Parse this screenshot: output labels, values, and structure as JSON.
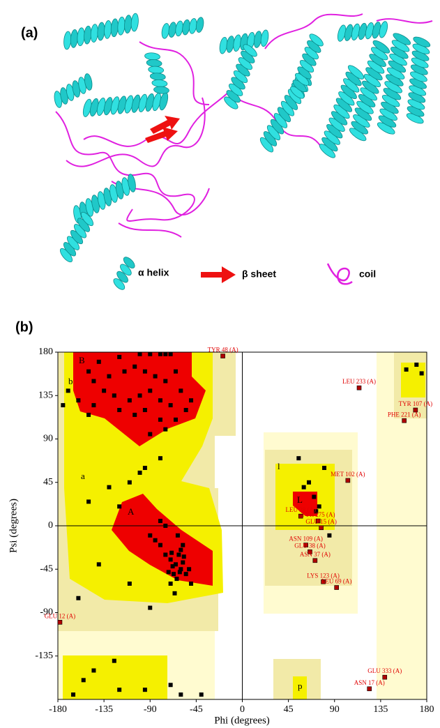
{
  "figure": {
    "panel_a": "(a)",
    "panel_b": "(b)",
    "legend": [
      "α helix",
      "β sheet",
      "coil"
    ]
  },
  "chart_data": {
    "type": "scatter",
    "xlabel": "Phi (degrees)",
    "ylabel": "Psi (degrees)",
    "xlim": [
      -180,
      180
    ],
    "ylim": [
      -180,
      180
    ],
    "xticks": [
      -180,
      -135,
      -90,
      -45,
      0,
      45,
      90,
      135,
      180
    ],
    "yticks": [
      -135,
      -90,
      -45,
      0,
      45,
      90,
      135,
      180
    ],
    "zero_lines": true,
    "point_color": "#000000",
    "outlier_color": "#b00000",
    "label_color": "#e00000",
    "region_labels": [
      "B",
      "b",
      "A",
      "a",
      "L",
      "l",
      "p"
    ],
    "x": [
      -150,
      -140,
      -120,
      -100,
      -90,
      -80,
      -75,
      -70,
      -145,
      -130,
      -115,
      -105,
      -95,
      -85,
      -75,
      -65,
      -135,
      -125,
      -110,
      -100,
      -90,
      -80,
      -70,
      -60,
      -145,
      -120,
      -105,
      -95,
      -80,
      -65,
      -55,
      -150,
      -160,
      -175,
      -170,
      -90,
      -75,
      -50,
      -65,
      -60,
      -70,
      -55,
      -62,
      -68,
      -58,
      -72,
      -64,
      -60,
      -75,
      -80,
      -85,
      -90,
      -52,
      -50,
      -66,
      -70,
      -58,
      -63,
      -80,
      -75,
      -67,
      -57,
      -61,
      -69,
      -120,
      -110,
      -100,
      -95,
      -130,
      -150,
      -80,
      -140,
      -110,
      -90,
      -160,
      -145,
      -120,
      -95,
      -70,
      -155,
      -165,
      -125,
      -60,
      -40,
      55,
      65,
      70,
      60,
      75,
      72,
      80,
      85,
      170,
      160,
      175
    ],
    "y": [
      160,
      170,
      175,
      178,
      178,
      178,
      178,
      178,
      150,
      155,
      160,
      165,
      160,
      155,
      150,
      160,
      140,
      135,
      130,
      135,
      140,
      130,
      125,
      140,
      125,
      120,
      115,
      120,
      110,
      110,
      120,
      115,
      130,
      125,
      140,
      95,
      100,
      130,
      -40,
      -45,
      -35,
      -50,
      -30,
      -42,
      -38,
      -48,
      -55,
      -25,
      -30,
      -20,
      -15,
      -10,
      -45,
      -60,
      -70,
      -60,
      -20,
      -10,
      5,
      0,
      -50,
      -32,
      -48,
      -28,
      20,
      45,
      55,
      60,
      40,
      25,
      70,
      -40,
      -60,
      -85,
      -75,
      -150,
      -170,
      -170,
      -165,
      -160,
      -175,
      -140,
      -175,
      -175,
      70,
      45,
      30,
      40,
      20,
      15,
      60,
      -10,
      167,
      162,
      158
    ],
    "annotations": [
      {
        "text": "TYR 48 (A)",
        "x": -19,
        "y": 176
      },
      {
        "text": "LEU 233 (A)",
        "x": 114,
        "y": 143
      },
      {
        "text": "TYR 107 (A)",
        "x": 169,
        "y": 120
      },
      {
        "text": "PHE 221 (A)",
        "x": 158,
        "y": 109
      },
      {
        "text": "MET 102 (A)",
        "x": 103,
        "y": 47
      },
      {
        "text": "LEU 28 (A)",
        "x": 57,
        "y": 10
      },
      {
        "text": "TYR 275 (A)",
        "x": 74,
        "y": 5
      },
      {
        "text": "GLU 15 (A)",
        "x": 77,
        "y": -2
      },
      {
        "text": "ASN 109 (A)",
        "x": 62,
        "y": -20
      },
      {
        "text": "GLU 38 (A)",
        "x": 66,
        "y": -27
      },
      {
        "text": "ASN 37 (A)",
        "x": 71,
        "y": -36
      },
      {
        "text": "LYS 123 (A)",
        "x": 79,
        "y": -58
      },
      {
        "text": "LEU 69 (A)",
        "x": 92,
        "y": -64
      },
      {
        "text": "GLU 12 (A)",
        "x": -178,
        "y": -100
      },
      {
        "text": "GLU 333 (A)",
        "x": 139,
        "y": -157
      },
      {
        "text": "ASN 17 (A)",
        "x": 124,
        "y": -169
      }
    ]
  }
}
